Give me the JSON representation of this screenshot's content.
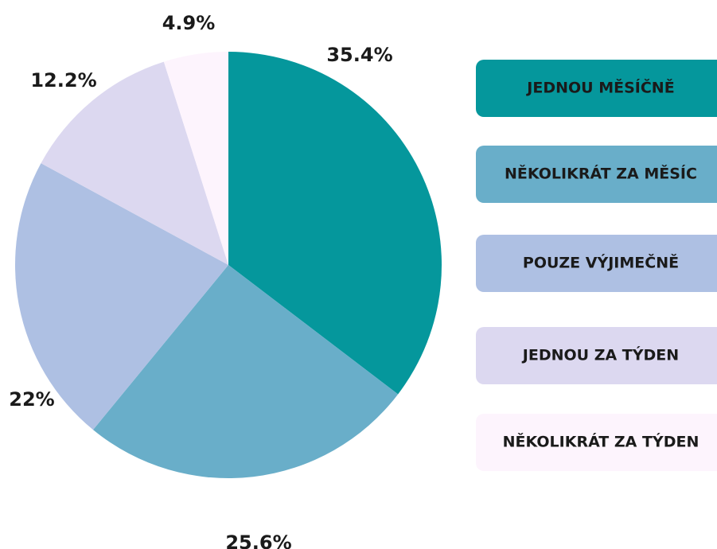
{
  "chart_data": {
    "type": "pie",
    "categories": [
      "JEDNOU MĚSÍČNĚ",
      "NĚKOLIKRÁT ZA MĚSÍC",
      "POUZE VÝJIMEČNĚ",
      "JEDNOU ZA TÝDEN",
      "NĚKOLIKRÁT ZA TÝDEN"
    ],
    "values": [
      35.4,
      25.6,
      22,
      12.2,
      4.9
    ],
    "value_labels": [
      "35.4%",
      "25.6%",
      "22%",
      "12.2%",
      "4.9%"
    ],
    "colors": [
      "#05979c",
      "#69aec9",
      "#aec0e3",
      "#dcd8f0",
      "#fdf4fd"
    ]
  }
}
